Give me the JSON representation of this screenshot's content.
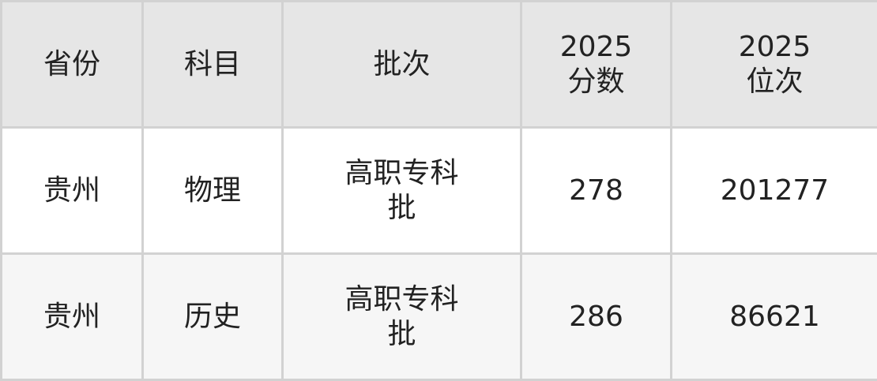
{
  "table": {
    "headers": [
      "省份",
      "科目",
      "批次",
      "2025\n分数",
      "2025\n位次"
    ],
    "header_lines": [
      [
        "省份"
      ],
      [
        "科目"
      ],
      [
        "批次"
      ],
      [
        "2025",
        "分数"
      ],
      [
        "2025",
        "位次"
      ]
    ],
    "rows": [
      [
        "贵州",
        "物理",
        "高职专科批",
        "278",
        "201277"
      ],
      [
        "贵州",
        "历史",
        "高职专科批",
        "286",
        "86621"
      ]
    ]
  },
  "colors": {
    "header_bg": "#e6e6e6",
    "border": "#d2d2d2",
    "alt_row_bg": "#f6f6f6"
  }
}
